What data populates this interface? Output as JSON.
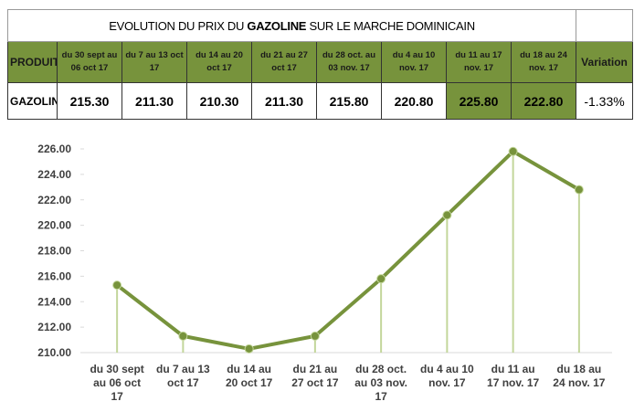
{
  "table": {
    "title_parts": [
      "EVOLUTION DU PRIX DU ",
      "GAZOLINE",
      " SUR LE MARCHE DOMINICAIN"
    ],
    "headers": [
      "PRODUITS",
      "du 30 sept au 06 oct 17",
      "du 7 au 13 oct 17",
      "du 14 au 20 oct 17",
      "du 21 au 27 oct 17",
      "du 28 oct. au 03 nov. 17",
      "du 4 au 10 nov. 17",
      "du 11 au 17 nov. 17",
      "du 18 au 24 nov. 17",
      "Variation"
    ],
    "row": [
      "GAZOLINE",
      "215.30",
      "211.30",
      "210.30",
      "211.30",
      "215.80",
      "220.80",
      "225.80",
      "222.80",
      "-1.33%"
    ]
  },
  "chart_data": {
    "type": "line",
    "categories": [
      "du 30 sept au 06 oct 17",
      "du 7 au 13 oct 17",
      "du 14 au 20 oct 17",
      "du 21 au 27 oct 17",
      "du 28 oct. au 03 nov. 17",
      "du 4 au 10 nov. 17",
      "du 11 au 17 nov. 17",
      "du 18 au 24 nov. 17"
    ],
    "values": [
      215.3,
      211.3,
      210.3,
      211.3,
      215.8,
      220.8,
      225.8,
      222.8
    ],
    "color": "#77933c",
    "drop_line_color": "#c3d69b",
    "ylim": [
      210,
      226
    ],
    "yticks": [
      {
        "value": 210,
        "label": "210.00"
      },
      {
        "value": 212,
        "label": "212.00"
      },
      {
        "value": 214,
        "label": "214.00"
      },
      {
        "value": 216,
        "label": "216.00"
      },
      {
        "value": 218,
        "label": "218.00"
      },
      {
        "value": 220,
        "label": "220.00"
      },
      {
        "value": 222,
        "label": "222.00"
      },
      {
        "value": 224,
        "label": "224.00"
      },
      {
        "value": 226,
        "label": "226.00"
      }
    ]
  }
}
